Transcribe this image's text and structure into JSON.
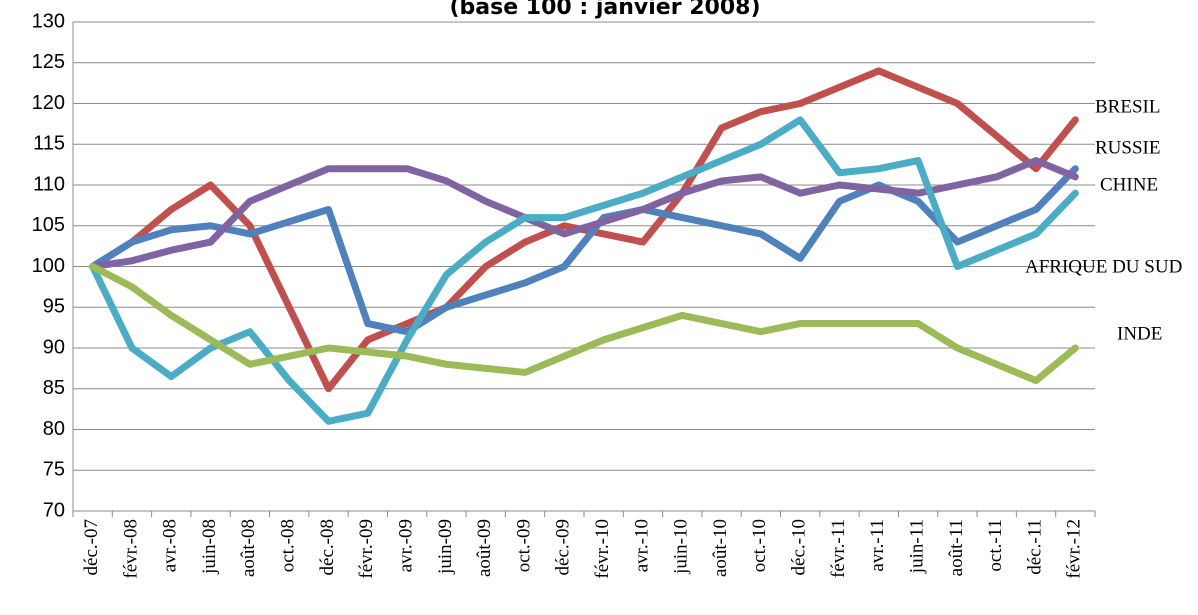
{
  "chart_data": {
    "type": "line",
    "title": "(base 100 : janvier 2008)",
    "categories": [
      "déc.-07",
      "févr.-08",
      "avr.-08",
      "juin-08",
      "août-08",
      "oct.-08",
      "déc.-08",
      "févr.-09",
      "avr.-09",
      "juin-09",
      "août-09",
      "oct.-09",
      "déc.-09",
      "févr.-10",
      "avr.-10",
      "juin-10",
      "août-10",
      "oct.-10",
      "déc.-10",
      "févr.-11",
      "avr.-11",
      "juin-11",
      "août-11",
      "oct.-11",
      "déc.-11",
      "févr.-12"
    ],
    "series": [
      {
        "name": "BRESIL",
        "color": "#c0504d",
        "values": [
          100,
          103,
          107,
          110,
          105,
          95,
          85,
          91,
          93,
          95,
          100,
          103,
          105,
          104,
          103,
          109,
          117,
          119,
          120,
          122,
          124,
          122,
          120,
          116,
          112,
          118
        ]
      },
      {
        "name": "RUSSIE",
        "color": "#4f81bd",
        "values": [
          100,
          103,
          104.5,
          105,
          104,
          105.5,
          107,
          93,
          92,
          95,
          96.5,
          98,
          100,
          106,
          107,
          106,
          105,
          104,
          101,
          108,
          110,
          108,
          103,
          105,
          107,
          112
        ]
      },
      {
        "name": "CHINE",
        "color": "#8064a2",
        "values": [
          100,
          100.7,
          102,
          103,
          108,
          110,
          112,
          112,
          112,
          110.5,
          108,
          106,
          104,
          105.5,
          107,
          109,
          110.5,
          111,
          109,
          110,
          109.5,
          109,
          110,
          111,
          113,
          111
        ]
      },
      {
        "name": "AFRIQUE DU SUD",
        "color": "#4bacc6",
        "values": [
          100,
          90,
          86.5,
          90,
          92,
          86,
          81,
          82,
          91,
          99,
          103,
          106,
          106,
          107.5,
          109,
          111,
          113,
          115,
          118,
          111.5,
          112,
          113,
          100,
          102,
          104,
          109
        ]
      },
      {
        "name": "INDE",
        "color": "#9bbb59",
        "values": [
          100,
          97.5,
          94,
          91,
          88,
          89,
          90,
          89.5,
          89,
          88,
          87.5,
          87,
          89,
          91,
          92.5,
          94,
          93,
          92,
          93,
          93,
          93,
          93,
          90,
          88,
          86,
          90
        ]
      }
    ],
    "ylim": [
      70,
      130
    ],
    "yticks": [
      70,
      75,
      80,
      85,
      90,
      95,
      100,
      105,
      110,
      115,
      120,
      125,
      130
    ],
    "grid": true
  }
}
